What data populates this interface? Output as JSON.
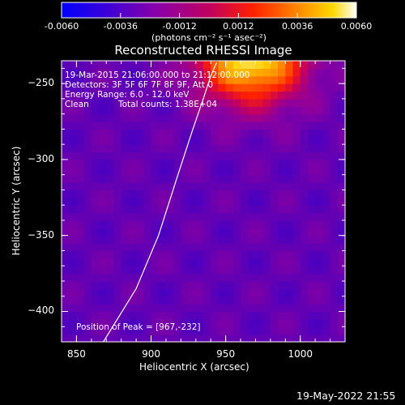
{
  "colorbar": {
    "tick_labels": [
      "-0.0060",
      "-0.0036",
      "-0.0012",
      "0.0012",
      "0.0036",
      "0.0060"
    ],
    "range": [
      -0.006,
      0.006
    ],
    "unit_label": "(photons cm⁻² s⁻¹ asec⁻²)"
  },
  "overlay": {
    "time_range": "19-Mar-2015 21:06:00.000 to 21:12:00.000",
    "detectors": "Detectors: 3F 5F 6F 7F 8F 9F, Att 0",
    "energy_range": "Energy Range: 6.0 - 12.0 keV",
    "method": "Clean",
    "total_counts": "Total counts: 1.38E+04",
    "peak_position": "Position of Peak = [967,-232]"
  },
  "footer": {
    "date": "19-May-2022 21:55"
  },
  "chart_data": {
    "type": "heatmap",
    "title": "Reconstructed RHESSI Image",
    "xlabel": "Heliocentric X (arcsec)",
    "ylabel": "Heliocentric Y (arcsec)",
    "xlim": [
      840,
      1030
    ],
    "ylim": [
      -420,
      -235
    ],
    "x_ticks": [
      850,
      900,
      950,
      1000
    ],
    "y_ticks": [
      -250,
      -300,
      -350,
      -400
    ],
    "peak": [
      967,
      -232
    ],
    "limb_curve": [
      [
        868,
        -420
      ],
      [
        890,
        -385
      ],
      [
        905,
        -350
      ],
      [
        918,
        -310
      ],
      [
        928,
        -280
      ],
      [
        935,
        -260
      ],
      [
        940,
        -245
      ],
      [
        944,
        -236
      ]
    ],
    "colormap": [
      "#0000ff",
      "#4a00c0",
      "#8a00a0",
      "#c40060",
      "#ff2000",
      "#ff8000",
      "#ffd000",
      "#ffffff"
    ]
  }
}
